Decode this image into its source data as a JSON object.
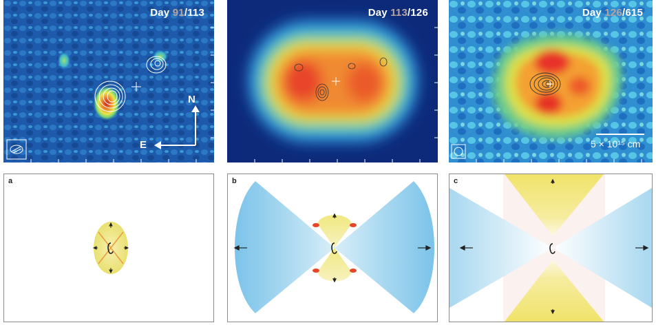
{
  "panels_top": [
    {
      "day_highlight": "91",
      "day_rest": "/113"
    },
    {
      "day_highlight": "113",
      "day_rest": "/126"
    },
    {
      "day_highlight": "126",
      "day_rest": "/615"
    }
  ],
  "compass": {
    "north": "N",
    "east": "E"
  },
  "scale_bar": {
    "label": "5 × 10¹⁵ cm"
  },
  "panels_bottom": [
    {
      "letter": "a"
    },
    {
      "letter": "b"
    },
    {
      "letter": "c"
    }
  ],
  "colors": {
    "background_blue": "#1a55a8",
    "hot": "#e8302a",
    "cyan": "#5ac8ec",
    "cone_yellow": "#f0e37a"
  },
  "prefix": "Day "
}
